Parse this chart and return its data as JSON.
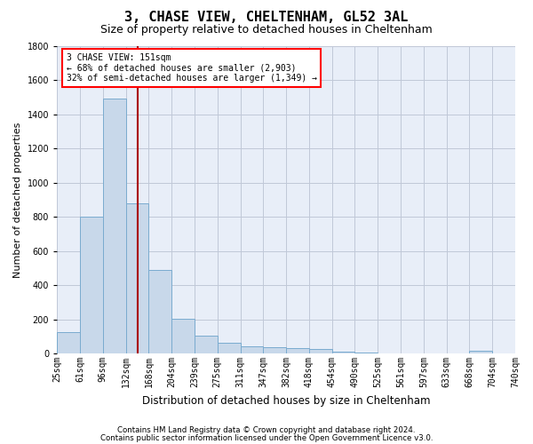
{
  "title": "3, CHASE VIEW, CHELTENHAM, GL52 3AL",
  "subtitle": "Size of property relative to detached houses in Cheltenham",
  "xlabel": "Distribution of detached houses by size in Cheltenham",
  "ylabel": "Number of detached properties",
  "footer_line1": "Contains HM Land Registry data © Crown copyright and database right 2024.",
  "footer_line2": "Contains public sector information licensed under the Open Government Licence v3.0.",
  "bin_labels": [
    "25sqm",
    "61sqm",
    "96sqm",
    "132sqm",
    "168sqm",
    "204sqm",
    "239sqm",
    "275sqm",
    "311sqm",
    "347sqm",
    "382sqm",
    "418sqm",
    "454sqm",
    "490sqm",
    "525sqm",
    "561sqm",
    "597sqm",
    "633sqm",
    "668sqm",
    "704sqm",
    "740sqm"
  ],
  "bar_heights": [
    125,
    800,
    1490,
    880,
    490,
    205,
    105,
    65,
    40,
    35,
    30,
    25,
    10,
    5,
    3,
    2,
    2,
    2,
    15,
    0
  ],
  "bar_color": "#c8d8ea",
  "bar_edge_color": "#7aabcf",
  "ylim": [
    0,
    1800
  ],
  "yticks": [
    0,
    200,
    400,
    600,
    800,
    1000,
    1200,
    1400,
    1600,
    1800
  ],
  "vline_x": 151,
  "vline_color": "#aa0000",
  "annotation_line1": "3 CHASE VIEW: 151sqm",
  "annotation_line2": "← 68% of detached houses are smaller (2,903)",
  "annotation_line3": "32% of semi-detached houses are larger (1,349) →",
  "background_color": "#ffffff",
  "plot_bg_color": "#e8eef8",
  "grid_color": "#c0c8d8",
  "title_fontsize": 11,
  "subtitle_fontsize": 9,
  "tick_fontsize": 7,
  "ylabel_fontsize": 8,
  "xlabel_fontsize": 8.5
}
